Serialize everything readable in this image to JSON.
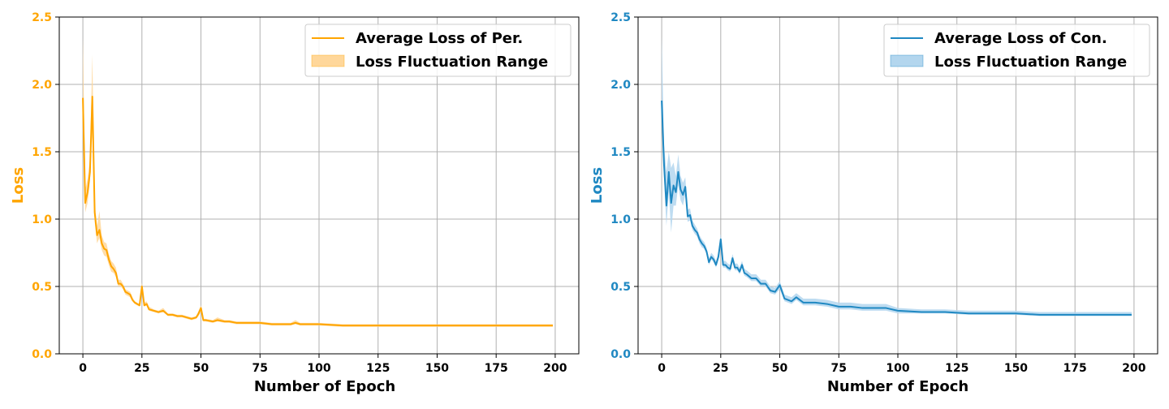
{
  "chart_data": [
    {
      "type": "line",
      "color": "#ffa500",
      "band_color": "#ffd79a",
      "xlabel": "Number of Epoch",
      "ylabel": "Loss",
      "xlim": [
        -10,
        210
      ],
      "ylim": [
        0,
        2.5
      ],
      "xticks": [
        0,
        25,
        50,
        75,
        100,
        125,
        150,
        175,
        200
      ],
      "yticks": [
        0.0,
        0.5,
        1.0,
        1.5,
        2.0,
        2.5
      ],
      "ytick_labels": [
        "0.0",
        "0.5",
        "1.0",
        "1.5",
        "2.0",
        "2.5"
      ],
      "grid": true,
      "legend_position": "top-right",
      "legend": [
        "Average Loss of Per.",
        "Loss Fluctuation Range"
      ],
      "series": [
        {
          "name": "Average Loss of Per.",
          "x": [
            0,
            1,
            2,
            3,
            4,
            5,
            6,
            7,
            8,
            9,
            10,
            11,
            12,
            13,
            14,
            15,
            16,
            17,
            18,
            19,
            20,
            21,
            22,
            23,
            24,
            25,
            26,
            27,
            28,
            30,
            32,
            34,
            36,
            38,
            40,
            42,
            44,
            46,
            48,
            49,
            50,
            51,
            52,
            55,
            57,
            60,
            62,
            65,
            70,
            72,
            75,
            80,
            85,
            88,
            90,
            92,
            95,
            100,
            110,
            120,
            130,
            140,
            150,
            160,
            170,
            180,
            190,
            199
          ],
          "y": [
            1.9,
            1.12,
            1.2,
            1.35,
            1.91,
            1.05,
            0.88,
            0.92,
            0.82,
            0.78,
            0.77,
            0.7,
            0.65,
            0.63,
            0.6,
            0.52,
            0.52,
            0.5,
            0.46,
            0.45,
            0.44,
            0.4,
            0.38,
            0.37,
            0.36,
            0.5,
            0.36,
            0.37,
            0.33,
            0.32,
            0.31,
            0.32,
            0.29,
            0.29,
            0.28,
            0.28,
            0.27,
            0.26,
            0.27,
            0.3,
            0.34,
            0.25,
            0.25,
            0.24,
            0.25,
            0.24,
            0.24,
            0.23,
            0.23,
            0.23,
            0.23,
            0.22,
            0.22,
            0.22,
            0.23,
            0.22,
            0.22,
            0.22,
            0.21,
            0.21,
            0.21,
            0.21,
            0.21,
            0.21,
            0.21,
            0.21,
            0.21,
            0.21
          ],
          "lower": [
            1.8,
            1.05,
            1.12,
            1.28,
            1.65,
            0.98,
            0.82,
            0.86,
            0.77,
            0.73,
            0.72,
            0.66,
            0.61,
            0.6,
            0.57,
            0.5,
            0.5,
            0.48,
            0.44,
            0.43,
            0.42,
            0.39,
            0.37,
            0.36,
            0.35,
            0.46,
            0.35,
            0.36,
            0.32,
            0.31,
            0.3,
            0.31,
            0.28,
            0.28,
            0.27,
            0.27,
            0.26,
            0.25,
            0.26,
            0.28,
            0.31,
            0.24,
            0.24,
            0.23,
            0.24,
            0.23,
            0.23,
            0.22,
            0.22,
            0.22,
            0.22,
            0.21,
            0.21,
            0.21,
            0.22,
            0.21,
            0.21,
            0.21,
            0.2,
            0.2,
            0.2,
            0.2,
            0.2,
            0.2,
            0.2,
            0.2,
            0.2,
            0.2
          ],
          "upper": [
            2.35,
            1.22,
            1.3,
            1.45,
            2.22,
            1.12,
            0.95,
            1.06,
            0.88,
            0.83,
            0.82,
            0.74,
            0.69,
            0.67,
            0.64,
            0.55,
            0.55,
            0.52,
            0.48,
            0.47,
            0.46,
            0.42,
            0.39,
            0.38,
            0.37,
            0.53,
            0.38,
            0.39,
            0.35,
            0.33,
            0.32,
            0.34,
            0.3,
            0.3,
            0.29,
            0.29,
            0.28,
            0.27,
            0.28,
            0.32,
            0.36,
            0.26,
            0.26,
            0.25,
            0.27,
            0.25,
            0.25,
            0.24,
            0.24,
            0.24,
            0.24,
            0.23,
            0.23,
            0.23,
            0.25,
            0.23,
            0.23,
            0.23,
            0.22,
            0.22,
            0.22,
            0.22,
            0.22,
            0.22,
            0.22,
            0.22,
            0.22,
            0.22
          ]
        }
      ]
    },
    {
      "type": "line",
      "color": "#1f88c2",
      "band_color": "#b3d6ee",
      "xlabel": "Number of Epoch",
      "ylabel": "Loss",
      "xlim": [
        -10,
        210
      ],
      "ylim": [
        0,
        2.5
      ],
      "xticks": [
        0,
        25,
        50,
        75,
        100,
        125,
        150,
        175,
        200
      ],
      "yticks": [
        0.0,
        0.5,
        1.0,
        1.5,
        2.0,
        2.5
      ],
      "ytick_labels": [
        "0.0",
        "0.5",
        "1.0",
        "1.5",
        "2.0",
        "2.5"
      ],
      "grid": true,
      "legend_position": "top-right",
      "legend": [
        "Average Loss of Con.",
        "Loss Fluctuation Range"
      ],
      "series": [
        {
          "name": "Average Loss of Con.",
          "x": [
            0,
            1,
            2,
            3,
            4,
            5,
            6,
            7,
            8,
            9,
            10,
            11,
            12,
            13,
            14,
            15,
            16,
            17,
            18,
            19,
            20,
            21,
            22,
            23,
            24,
            25,
            26,
            27,
            28,
            29,
            30,
            31,
            32,
            33,
            34,
            35,
            36,
            38,
            40,
            42,
            44,
            46,
            48,
            50,
            52,
            55,
            57,
            60,
            65,
            70,
            75,
            80,
            85,
            90,
            95,
            100,
            110,
            120,
            130,
            140,
            150,
            160,
            170,
            180,
            190,
            199
          ],
          "y": [
            1.88,
            1.4,
            1.1,
            1.35,
            1.12,
            1.25,
            1.2,
            1.35,
            1.22,
            1.18,
            1.24,
            1.02,
            1.03,
            0.95,
            0.92,
            0.9,
            0.85,
            0.82,
            0.8,
            0.76,
            0.68,
            0.72,
            0.7,
            0.66,
            0.72,
            0.85,
            0.66,
            0.66,
            0.64,
            0.63,
            0.71,
            0.64,
            0.64,
            0.61,
            0.66,
            0.6,
            0.59,
            0.56,
            0.56,
            0.52,
            0.52,
            0.47,
            0.46,
            0.51,
            0.41,
            0.39,
            0.42,
            0.38,
            0.38,
            0.37,
            0.35,
            0.35,
            0.34,
            0.34,
            0.34,
            0.32,
            0.31,
            0.31,
            0.3,
            0.3,
            0.3,
            0.29,
            0.29,
            0.29,
            0.29,
            0.29
          ],
          "lower": [
            1.8,
            1.3,
            0.95,
            1.2,
            0.9,
            1.1,
            1.1,
            1.25,
            1.14,
            1.1,
            1.18,
            0.98,
            0.99,
            0.92,
            0.89,
            0.87,
            0.82,
            0.79,
            0.78,
            0.74,
            0.66,
            0.7,
            0.68,
            0.64,
            0.7,
            0.8,
            0.64,
            0.64,
            0.62,
            0.61,
            0.68,
            0.62,
            0.62,
            0.59,
            0.64,
            0.58,
            0.57,
            0.54,
            0.54,
            0.5,
            0.5,
            0.45,
            0.44,
            0.48,
            0.39,
            0.37,
            0.4,
            0.36,
            0.36,
            0.35,
            0.33,
            0.33,
            0.32,
            0.32,
            0.32,
            0.3,
            0.3,
            0.3,
            0.29,
            0.29,
            0.29,
            0.28,
            0.28,
            0.28,
            0.28,
            0.28
          ],
          "upper": [
            2.35,
            1.55,
            1.35,
            1.5,
            1.38,
            1.42,
            1.32,
            1.48,
            1.32,
            1.27,
            1.31,
            1.07,
            1.08,
            0.99,
            0.96,
            0.93,
            0.88,
            0.85,
            0.83,
            0.79,
            0.71,
            0.75,
            0.73,
            0.69,
            0.75,
            0.89,
            0.69,
            0.69,
            0.67,
            0.66,
            0.74,
            0.67,
            0.67,
            0.64,
            0.69,
            0.63,
            0.62,
            0.59,
            0.59,
            0.55,
            0.55,
            0.5,
            0.49,
            0.54,
            0.44,
            0.42,
            0.45,
            0.41,
            0.41,
            0.4,
            0.38,
            0.38,
            0.37,
            0.37,
            0.37,
            0.34,
            0.33,
            0.33,
            0.32,
            0.32,
            0.32,
            0.31,
            0.31,
            0.31,
            0.31,
            0.31
          ]
        }
      ]
    }
  ]
}
